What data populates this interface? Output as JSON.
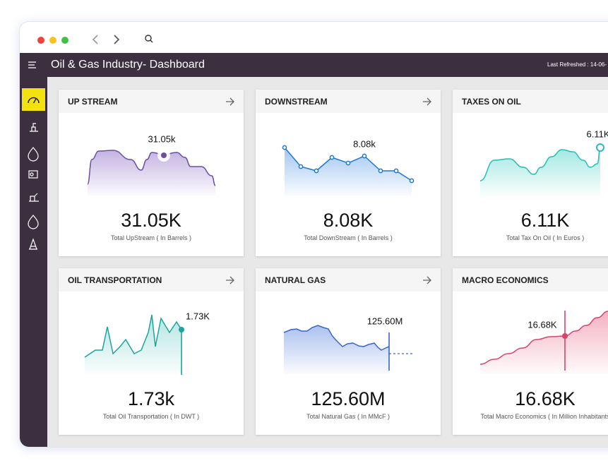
{
  "header": {
    "title": "Oil & Gas Industry- Dashboard",
    "last_refreshed": "Last Refreshed : 14-06-"
  },
  "cards": [
    {
      "title": "UP STREAM",
      "chart_label": "31.05k",
      "value": "31.05K",
      "caption": "Total UpStream ( In Barrels )"
    },
    {
      "title": "DOWNSTREAM",
      "chart_label": "8.08k",
      "value": "8.08K",
      "caption": "Total DownStream ( In Barrels )"
    },
    {
      "title": "TAXES ON OIL",
      "chart_label": "6.11K",
      "value": "6.11K",
      "caption": "Total Tax On Oil ( In Euros )"
    },
    {
      "title": "OIL TRANSPORTATION",
      "chart_label": "1.73K",
      "value": "1.73k",
      "caption": "Total Oil Transportation ( In DWT )"
    },
    {
      "title": "NATURAL GAS",
      "chart_label": "125.60M",
      "value": "125.60M",
      "caption": "Total Natural Gas  ( In MMcF )"
    },
    {
      "title": "MACRO ECONOMICS",
      "chart_label": "16.68K",
      "value": "16.68K",
      "caption": "Total Macro Economics ( In Million Inhabitants"
    }
  ]
}
